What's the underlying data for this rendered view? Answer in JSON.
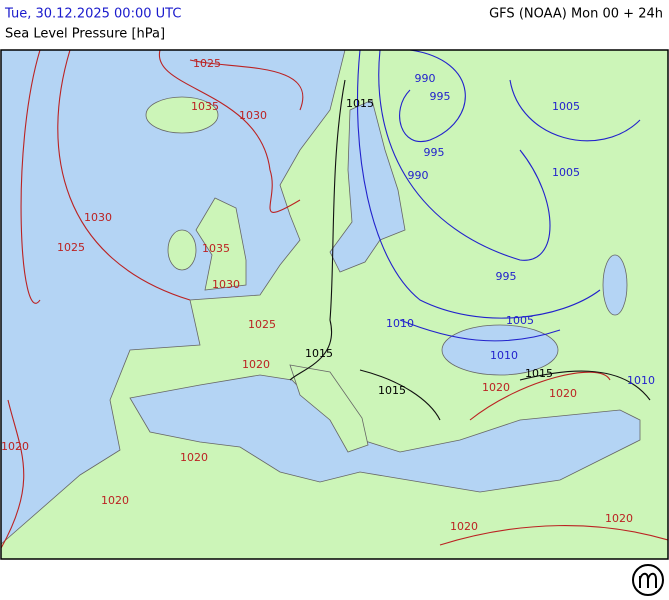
{
  "header": {
    "run_time": "Tue, 30.12.2025 00:00 UTC",
    "model": "GFS (NOAA) Mon 00 + 24h",
    "parameter": "Sea Level Pressure [hPa]"
  },
  "isobar_labels": [
    1025,
    1035,
    1030,
    990,
    995,
    1015,
    1005,
    995,
    990,
    1005,
    1030,
    1025,
    1035,
    1030,
    995,
    1025,
    1005,
    1010,
    1015,
    1010,
    1020,
    1015,
    1020,
    1010,
    1015,
    1020,
    1020,
    1020,
    1020,
    1020,
    1020
  ]
}
